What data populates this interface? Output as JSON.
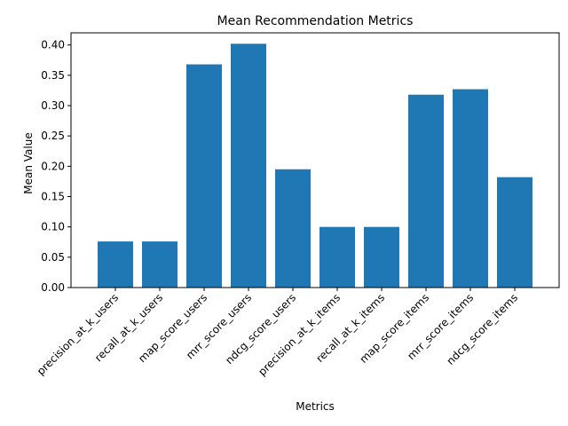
{
  "chart_data": {
    "type": "bar",
    "title": "Mean Recommendation Metrics",
    "xlabel": "Metrics",
    "ylabel": "Mean Value",
    "categories": [
      "precision_at_k_users",
      "recall_at_k_users",
      "map_score_users",
      "mrr_score_users",
      "ndcg_score_users",
      "precision_at_k_items",
      "recall_at_k_items",
      "map_score_items",
      "mrr_score_items",
      "ndcg_score_items"
    ],
    "values": [
      0.076,
      0.076,
      0.368,
      0.402,
      0.195,
      0.1,
      0.1,
      0.318,
      0.327,
      0.182
    ],
    "ylim": [
      0,
      0.42
    ],
    "yticks": [
      "0.00",
      "0.05",
      "0.10",
      "0.15",
      "0.20",
      "0.25",
      "0.30",
      "0.35",
      "0.40"
    ],
    "bar_color": "#1f77b4",
    "grid": false,
    "legend": "none"
  }
}
